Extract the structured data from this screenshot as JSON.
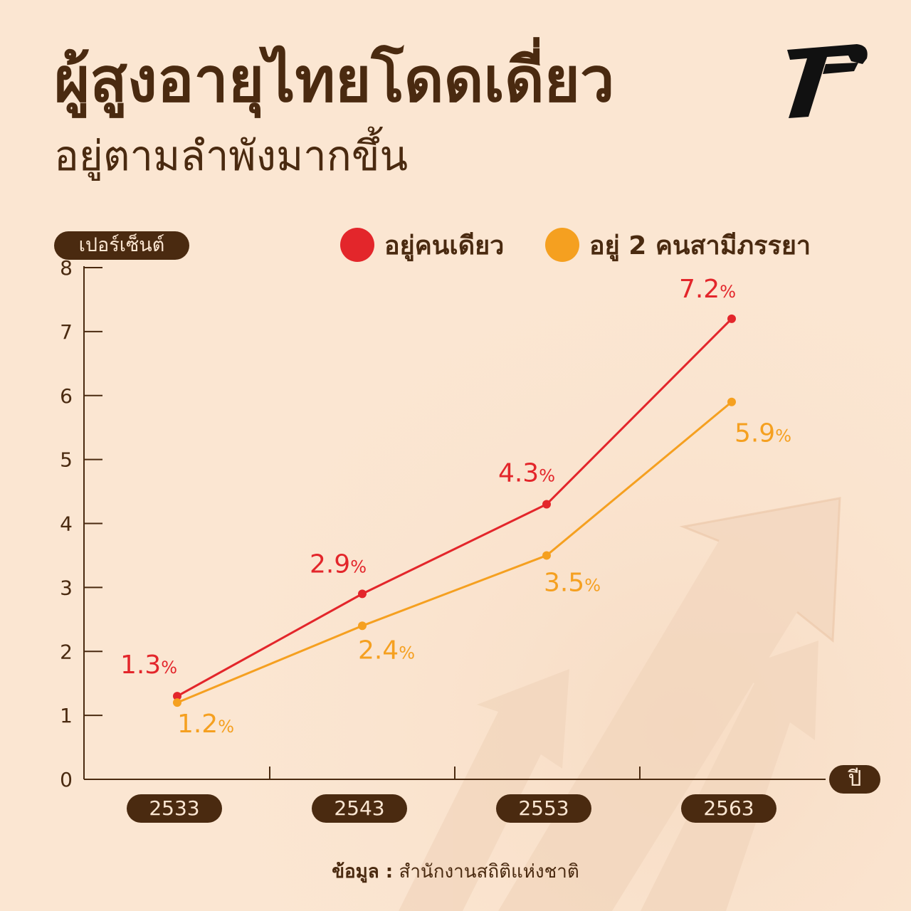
{
  "header": {
    "title": "ผู้สูงอายุไทยโดดเดี่ยว",
    "subtitle": "อยู่ตามลำพังมากขึ้น"
  },
  "source": {
    "key": "ข้อมูล :",
    "value": "สำนักงานสถิติแห่งชาติ"
  },
  "colors": {
    "background": "#fbe6d2",
    "text": "#4a2a10",
    "alone": "#e3262b",
    "couple": "#f5a020"
  },
  "chart_data": {
    "type": "line",
    "ylabel": "เปอร์เซ็นต์",
    "xlabel": "ปี",
    "categories": [
      "2533",
      "2543",
      "2553",
      "2563"
    ],
    "ylim": [
      0,
      8
    ],
    "yticks": [
      "0",
      "1",
      "2",
      "3",
      "4",
      "5",
      "6",
      "7",
      "8"
    ],
    "grid": false,
    "legend_position": "top-right",
    "series": [
      {
        "name": "อยู่คนเดียว",
        "values": [
          1.3,
          2.9,
          4.3,
          7.2
        ],
        "labels": [
          "1.3",
          "2.9",
          "4.3",
          "7.2"
        ],
        "color": "#e3262b"
      },
      {
        "name": "อยู่ 2 คนสามีภรรยา",
        "values": [
          1.2,
          2.4,
          3.5,
          5.9
        ],
        "labels": [
          "1.2",
          "2.4",
          "3.5",
          "5.9"
        ],
        "color": "#f5a020"
      }
    ],
    "value_suffix": "%"
  }
}
